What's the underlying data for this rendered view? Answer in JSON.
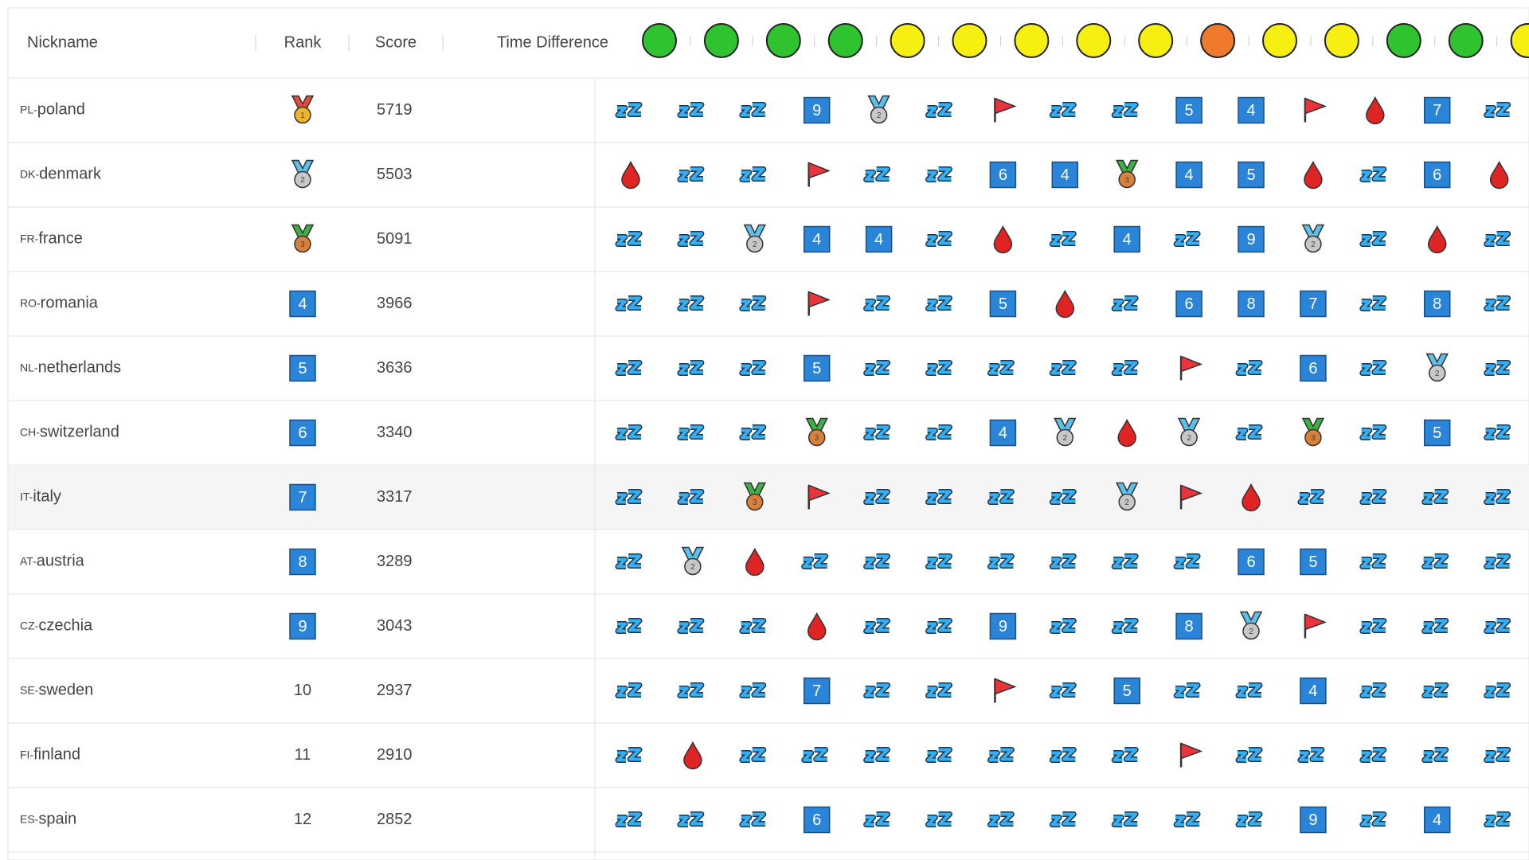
{
  "header": {
    "columns": [
      "Nickname",
      "Rank",
      "Score",
      "Time Difference"
    ],
    "challenge_colors": [
      "#2fc42f",
      "#2fc42f",
      "#2fc42f",
      "#2fc42f",
      "#f7ef12",
      "#f7ef12",
      "#f7ef12",
      "#f7ef12",
      "#f7ef12",
      "#f07a2c",
      "#f7ef12",
      "#f7ef12",
      "#2fc42f",
      "#2fc42f",
      "#f7ef12"
    ]
  },
  "highlighted_row": 6,
  "rows": [
    {
      "code": "PL-",
      "name": "poland",
      "rank": 1,
      "score": 5719,
      "solves": [
        false,
        false,
        false,
        9,
        2,
        false,
        true,
        false,
        false,
        5,
        4,
        true,
        1,
        7,
        false
      ]
    },
    {
      "code": "DK-",
      "name": "denmark",
      "rank": 2,
      "score": 5503,
      "solves": [
        1,
        false,
        false,
        true,
        false,
        false,
        6,
        4,
        3,
        4,
        5,
        1,
        false,
        6,
        1
      ]
    },
    {
      "code": "FR-",
      "name": "france",
      "rank": 3,
      "score": 5091,
      "solves": [
        false,
        false,
        2,
        4,
        4,
        false,
        1,
        false,
        4,
        false,
        9,
        2,
        false,
        1,
        false
      ]
    },
    {
      "code": "RO-",
      "name": "romania",
      "rank": 4,
      "score": 3966,
      "solves": [
        false,
        false,
        false,
        true,
        false,
        false,
        5,
        1,
        false,
        6,
        8,
        7,
        false,
        8,
        false
      ]
    },
    {
      "code": "NL-",
      "name": "netherlands",
      "rank": 5,
      "score": 3636,
      "solves": [
        false,
        false,
        false,
        5,
        false,
        false,
        false,
        false,
        false,
        true,
        false,
        6,
        false,
        2,
        false
      ]
    },
    {
      "code": "CH-",
      "name": "switzerland",
      "rank": 6,
      "score": 3340,
      "solves": [
        false,
        false,
        false,
        3,
        false,
        false,
        4,
        2,
        1,
        2,
        false,
        3,
        false,
        5,
        false
      ]
    },
    {
      "code": "IT-",
      "name": "italy",
      "rank": 7,
      "score": 3317,
      "solves": [
        false,
        false,
        3,
        true,
        false,
        false,
        false,
        false,
        2,
        true,
        1,
        false,
        false,
        false,
        false
      ]
    },
    {
      "code": "AT-",
      "name": "austria",
      "rank": 8,
      "score": 3289,
      "solves": [
        false,
        2,
        1,
        false,
        false,
        false,
        false,
        false,
        false,
        false,
        6,
        5,
        false,
        false,
        false
      ]
    },
    {
      "code": "CZ-",
      "name": "czechia",
      "rank": 9,
      "score": 3043,
      "solves": [
        false,
        false,
        false,
        1,
        false,
        false,
        9,
        false,
        false,
        8,
        2,
        true,
        false,
        false,
        false
      ]
    },
    {
      "code": "SE-",
      "name": "sweden",
      "rank": 10,
      "score": 2937,
      "solves": [
        false,
        false,
        false,
        7,
        false,
        false,
        true,
        false,
        5,
        false,
        false,
        4,
        false,
        false,
        false
      ]
    },
    {
      "code": "FI-",
      "name": "finland",
      "rank": 11,
      "score": 2910,
      "solves": [
        false,
        1,
        false,
        false,
        false,
        false,
        false,
        false,
        false,
        true,
        false,
        false,
        false,
        false,
        false
      ]
    },
    {
      "code": "ES-",
      "name": "spain",
      "rank": 12,
      "score": 2852,
      "solves": [
        false,
        false,
        false,
        6,
        false,
        false,
        false,
        false,
        false,
        false,
        false,
        9,
        false,
        4,
        false
      ]
    }
  ]
}
